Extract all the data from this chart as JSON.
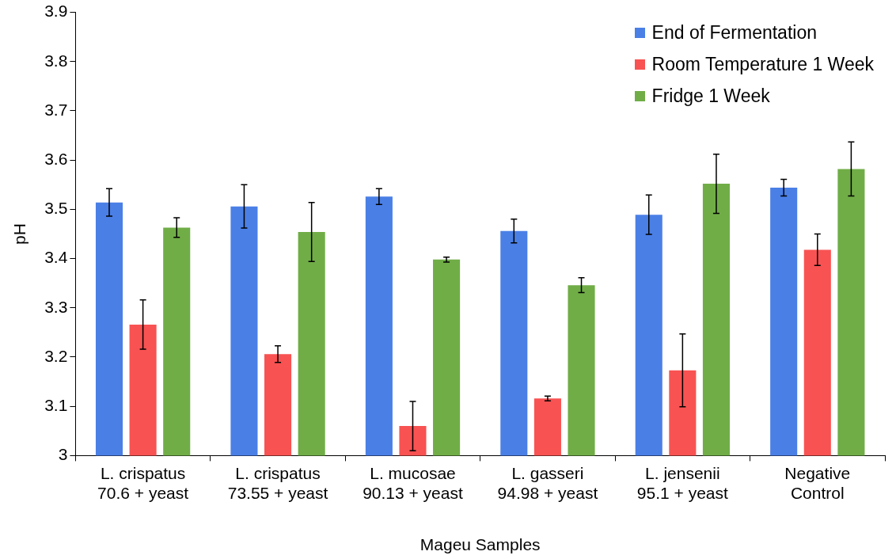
{
  "chart_data": {
    "type": "bar",
    "xlabel": "Mageu Samples",
    "ylabel": "pH",
    "categories": [
      "L. crispatus\n70.6 + yeast",
      "L. crispatus\n73.55 + yeast",
      "L. mucosae\n90.13 + yeast",
      "L. gasseri\n94.98 + yeast",
      "L. jensenii\n95.1 + yeast",
      "Negative\nControl"
    ],
    "series": [
      {
        "name": "End of Fermentation",
        "color": "#4a7fe6",
        "values": [
          3.514,
          3.506,
          3.526,
          3.456,
          3.489,
          3.544
        ],
        "errors": [
          0.028,
          0.044,
          0.016,
          0.024,
          0.04,
          0.017
        ]
      },
      {
        "name": "Room Temperature 1 Week",
        "color": "#f85252",
        "values": [
          3.266,
          3.206,
          3.06,
          3.116,
          3.173,
          3.418
        ],
        "errors": [
          0.05,
          0.017,
          0.05,
          0.005,
          0.074,
          0.032
        ]
      },
      {
        "name": "Fridge 1 Week",
        "color": "#70ad47",
        "values": [
          3.463,
          3.454,
          3.398,
          3.346,
          3.552,
          3.582
        ],
        "errors": [
          0.02,
          0.06,
          0.005,
          0.015,
          0.06,
          0.055
        ]
      }
    ],
    "ylim": [
      3,
      3.9
    ],
    "yticks": [
      3,
      3.1,
      3.2,
      3.3,
      3.4,
      3.5,
      3.6,
      3.7,
      3.8,
      3.9
    ],
    "grid": false,
    "legend": "top right"
  }
}
